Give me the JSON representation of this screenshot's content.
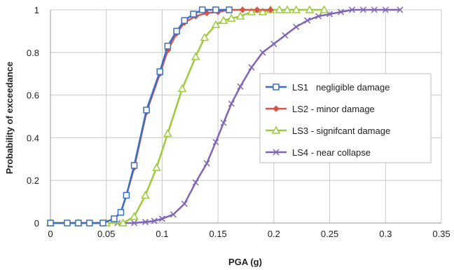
{
  "chart_data": {
    "type": "line",
    "xlabel": "PGA (g)",
    "ylabel": "Probability of exceedance",
    "xlim": [
      0,
      0.35
    ],
    "ylim": [
      0,
      1
    ],
    "x_ticks": [
      "0",
      "0.05",
      "0.1",
      "0.15",
      "0.2",
      "0.25",
      "0.3",
      "0.35"
    ],
    "y_ticks": [
      "0",
      "0.2",
      "0.4",
      "0.6",
      "0.8",
      "1"
    ],
    "grid": true,
    "legend_position": "center-right",
    "series": [
      {
        "name": "LS1   negligible damage",
        "color": "#3b6fc2",
        "marker": "square",
        "x": [
          0,
          0.015,
          0.025,
          0.035,
          0.047,
          0.057,
          0.063,
          0.068,
          0.075,
          0.086,
          0.098,
          0.105,
          0.113,
          0.12,
          0.128,
          0.136,
          0.148,
          0.16
        ],
        "y": [
          0,
          0,
          0,
          0,
          0,
          0.02,
          0.05,
          0.13,
          0.27,
          0.53,
          0.71,
          0.83,
          0.9,
          0.95,
          0.98,
          1.0,
          1.0,
          1.0
        ]
      },
      {
        "name": "LS2 - minor damage",
        "color": "#d9534a",
        "marker": "diamond",
        "x": [
          0,
          0.015,
          0.025,
          0.035,
          0.047,
          0.057,
          0.063,
          0.068,
          0.075,
          0.086,
          0.098,
          0.105,
          0.113,
          0.12,
          0.13,
          0.14,
          0.15,
          0.16,
          0.172,
          0.185,
          0.197
        ],
        "y": [
          0,
          0,
          0,
          0,
          0,
          0.02,
          0.05,
          0.13,
          0.26,
          0.52,
          0.7,
          0.81,
          0.89,
          0.94,
          0.97,
          0.985,
          0.99,
          1.0,
          1.0,
          1.0,
          1.0
        ]
      },
      {
        "name": "LS3 - signifcant damage",
        "color": "#9ccb3b",
        "marker": "triangle",
        "x": [
          0,
          0.025,
          0.05,
          0.065,
          0.075,
          0.085,
          0.095,
          0.105,
          0.118,
          0.13,
          0.138,
          0.148,
          0.155,
          0.162,
          0.17,
          0.18,
          0.19,
          0.197,
          0.205,
          0.212,
          0.22,
          0.232,
          0.245
        ],
        "y": [
          0,
          0,
          0,
          0,
          0.03,
          0.13,
          0.26,
          0.42,
          0.63,
          0.78,
          0.87,
          0.93,
          0.95,
          0.96,
          0.97,
          0.99,
          0.99,
          1.0,
          1.0,
          1.0,
          1.0,
          1.0,
          1.0
        ]
      },
      {
        "name": "LS4 - near collapse",
        "color": "#7f64b8",
        "marker": "x",
        "x": [
          0.06,
          0.075,
          0.085,
          0.093,
          0.1,
          0.11,
          0.12,
          0.13,
          0.14,
          0.148,
          0.155,
          0.162,
          0.17,
          0.18,
          0.19,
          0.2,
          0.21,
          0.22,
          0.23,
          0.24,
          0.25,
          0.26,
          0.27,
          0.28,
          0.29,
          0.3,
          0.313
        ],
        "y": [
          0,
          0,
          0.005,
          0.01,
          0.02,
          0.04,
          0.09,
          0.19,
          0.28,
          0.38,
          0.47,
          0.56,
          0.64,
          0.73,
          0.8,
          0.84,
          0.88,
          0.92,
          0.95,
          0.97,
          0.98,
          0.99,
          1.0,
          1.0,
          1.0,
          1.0,
          1.0
        ]
      }
    ]
  }
}
